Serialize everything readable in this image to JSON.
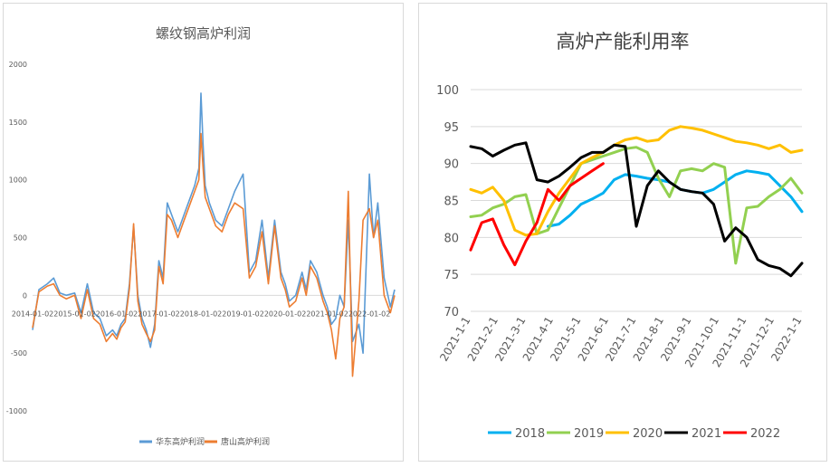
{
  "charts": {
    "left": {
      "title": "螺纹钢高炉利润"
    },
    "right": {
      "title": "高炉产能利用率"
    }
  },
  "chart_data": [
    {
      "type": "line",
      "title": "螺纹钢高炉利润",
      "xlabel": "",
      "ylabel": "",
      "ylim": [
        -1000,
        2000
      ],
      "y_ticks": [
        2000,
        1500,
        1000,
        500,
        0,
        -500,
        -1000
      ],
      "x_tick_labels": [
        "2014-01-02",
        "2015-01-02",
        "2016-01-02",
        "2017-01-02",
        "2018-01-02",
        "2019-01-02",
        "2020-01-02",
        "2021-01-02",
        "2022-01-02"
      ],
      "x_range": [
        2014.0,
        2022.6
      ],
      "legend_position": "bottom",
      "series": [
        {
          "name": "华东高炉利润",
          "color": "#5b9bd5",
          "x": [
            2014.0,
            2014.15,
            2014.35,
            2014.5,
            2014.65,
            2014.8,
            2015.0,
            2015.15,
            2015.3,
            2015.45,
            2015.6,
            2015.75,
            2015.9,
            2016.0,
            2016.1,
            2016.2,
            2016.3,
            2016.4,
            2016.5,
            2016.6,
            2016.7,
            2016.8,
            2016.9,
            2017.0,
            2017.1,
            2017.2,
            2017.3,
            2017.45,
            2017.6,
            2017.75,
            2017.85,
            2017.95,
            2018.0,
            2018.05,
            2018.1,
            2018.2,
            2018.35,
            2018.5,
            2018.65,
            2018.8,
            2019.0,
            2019.15,
            2019.3,
            2019.45,
            2019.6,
            2019.75,
            2019.9,
            2020.0,
            2020.1,
            2020.25,
            2020.4,
            2020.5,
            2020.6,
            2020.75,
            2020.9,
            2021.0,
            2021.1,
            2021.2,
            2021.3,
            2021.4,
            2021.5,
            2021.6,
            2021.75,
            2021.85,
            2022.0,
            2022.1,
            2022.2,
            2022.35,
            2022.5,
            2022.6
          ],
          "values": [
            -300,
            50,
            100,
            150,
            20,
            0,
            20,
            -150,
            100,
            -150,
            -200,
            -350,
            -300,
            -350,
            -250,
            -200,
            100,
            600,
            0,
            -200,
            -300,
            -450,
            -250,
            300,
            150,
            800,
            700,
            550,
            700,
            850,
            950,
            1100,
            1750,
            1300,
            950,
            800,
            650,
            600,
            750,
            900,
            1050,
            200,
            300,
            650,
            150,
            650,
            200,
            100,
            -50,
            0,
            200,
            50,
            300,
            200,
            0,
            -100,
            -250,
            -200,
            0,
            -100,
            650,
            -400,
            -250,
            -500,
            1050,
            500,
            800,
            150,
            -100,
            50
          ]
        },
        {
          "name": "唐山高炉利润",
          "color": "#ed7d31",
          "x": [
            2014.0,
            2014.15,
            2014.35,
            2014.5,
            2014.65,
            2014.8,
            2015.0,
            2015.15,
            2015.3,
            2015.45,
            2015.6,
            2015.75,
            2015.9,
            2016.0,
            2016.1,
            2016.2,
            2016.3,
            2016.4,
            2016.5,
            2016.6,
            2016.7,
            2016.8,
            2016.9,
            2017.0,
            2017.1,
            2017.2,
            2017.3,
            2017.45,
            2017.6,
            2017.75,
            2017.85,
            2017.95,
            2018.0,
            2018.05,
            2018.1,
            2018.2,
            2018.35,
            2018.5,
            2018.65,
            2018.8,
            2019.0,
            2019.15,
            2019.3,
            2019.45,
            2019.6,
            2019.75,
            2019.9,
            2020.0,
            2020.1,
            2020.25,
            2020.4,
            2020.5,
            2020.6,
            2020.75,
            2020.9,
            2021.0,
            2021.1,
            2021.2,
            2021.3,
            2021.4,
            2021.5,
            2021.6,
            2021.75,
            2021.85,
            2022.0,
            2022.1,
            2022.2,
            2022.35,
            2022.5,
            2022.6
          ],
          "values": [
            -280,
            30,
            80,
            100,
            0,
            -30,
            0,
            -200,
            50,
            -200,
            -250,
            -400,
            -330,
            -380,
            -280,
            -230,
            60,
            620,
            -50,
            -250,
            -330,
            -400,
            -300,
            250,
            100,
            700,
            650,
            500,
            650,
            800,
            900,
            1000,
            1400,
            1100,
            850,
            750,
            600,
            550,
            700,
            800,
            750,
            150,
            250,
            550,
            100,
            600,
            150,
            50,
            -100,
            -50,
            150,
            0,
            250,
            150,
            -50,
            -150,
            -300,
            -550,
            -200,
            -100,
            900,
            -700,
            -50,
            650,
            750,
            500,
            650,
            0,
            -150,
            0
          ]
        }
      ]
    },
    {
      "type": "line",
      "title": "高炉产能利用率",
      "xlabel": "",
      "ylabel": "",
      "ylim": [
        70,
        100
      ],
      "y_ticks": [
        100,
        95,
        90,
        85,
        80,
        75,
        70
      ],
      "categories": [
        "2021-1-1",
        "2021-2-1",
        "2021-3-1",
        "2021-4-1",
        "2021-5-1",
        "2021-6-1",
        "2021-7-1",
        "2021-8-1",
        "2021-9-1",
        "2021-10-1",
        "2021-11-1",
        "2021-12-1",
        "2022-1-1"
      ],
      "grid": true,
      "legend_position": "bottom",
      "series": [
        {
          "name": "2018",
          "color": "#00b0f0",
          "x": [
            0,
            0.4,
            0.8,
            1.2,
            1.6,
            2.0,
            2.4,
            2.8,
            3.2,
            3.6,
            4.0,
            4.4,
            4.8,
            5.2,
            5.6,
            6.0,
            6.4,
            6.8,
            7.2,
            7.6,
            8.0,
            8.4,
            8.8,
            9.2,
            9.6,
            10.0,
            10.4,
            10.8,
            11.2,
            11.6,
            12.0
          ],
          "values": [
            null,
            null,
            null,
            null,
            null,
            null,
            null,
            81.5,
            81.8,
            83.0,
            84.5,
            85.2,
            86.0,
            87.8,
            88.5,
            88.3,
            88.0,
            87.8,
            87.5,
            86.5,
            86.2,
            86.0,
            86.5,
            87.5,
            88.5,
            89.0,
            88.8,
            88.5,
            87.0,
            85.5,
            83.5
          ]
        },
        {
          "name": "2019",
          "color": "#92d050",
          "x": [
            0,
            0.4,
            0.8,
            1.2,
            1.6,
            2.0,
            2.4,
            2.8,
            3.2,
            3.6,
            4.0,
            4.4,
            4.8,
            5.2,
            5.6,
            6.0,
            6.4,
            6.8,
            7.2,
            7.6,
            8.0,
            8.4,
            8.8,
            9.2,
            9.6,
            10.0,
            10.4,
            10.8,
            11.2,
            11.6,
            12.0
          ],
          "values": [
            82.8,
            83.0,
            84.0,
            84.5,
            85.5,
            85.8,
            80.5,
            81.0,
            84.0,
            87.0,
            90.0,
            90.5,
            91.0,
            91.5,
            92.0,
            92.2,
            91.5,
            88.0,
            85.5,
            89.0,
            89.3,
            89.0,
            90.0,
            89.5,
            76.5,
            84.0,
            84.2,
            85.5,
            86.5,
            88.0,
            86.0
          ]
        },
        {
          "name": "2020",
          "color": "#ffc000",
          "x": [
            0,
            0.4,
            0.8,
            1.2,
            1.6,
            2.0,
            2.4,
            2.8,
            3.2,
            3.6,
            4.0,
            4.4,
            4.8,
            5.2,
            5.6,
            6.0,
            6.4,
            6.8,
            7.2,
            7.6,
            8.0,
            8.4,
            8.8,
            9.2,
            9.6,
            10.0,
            10.4,
            10.8,
            11.2,
            11.6,
            12.0
          ],
          "values": [
            86.5,
            86.0,
            86.8,
            85.0,
            81.0,
            80.3,
            80.5,
            83.5,
            86.0,
            88.0,
            90.0,
            90.8,
            91.5,
            92.5,
            93.2,
            93.5,
            93.0,
            93.2,
            94.5,
            95.0,
            94.8,
            94.5,
            94.0,
            93.5,
            93.0,
            92.8,
            92.5,
            92.0,
            92.5,
            91.5,
            91.8
          ]
        },
        {
          "name": "2021",
          "color": "#000000",
          "x": [
            0,
            0.4,
            0.8,
            1.2,
            1.6,
            2.0,
            2.4,
            2.8,
            3.2,
            3.6,
            4.0,
            4.4,
            4.8,
            5.2,
            5.6,
            6.0,
            6.4,
            6.8,
            7.2,
            7.6,
            8.0,
            8.4,
            8.8,
            9.2,
            9.6,
            10.0,
            10.4,
            10.8,
            11.2,
            11.6,
            12.0
          ],
          "values": [
            92.3,
            92.0,
            91.0,
            91.8,
            92.5,
            92.8,
            87.8,
            87.5,
            88.3,
            89.5,
            90.8,
            91.5,
            91.5,
            92.5,
            92.3,
            81.5,
            87.0,
            89.0,
            87.5,
            86.5,
            86.2,
            86.0,
            84.5,
            79.5,
            81.3,
            80.0,
            77.0,
            76.2,
            75.8,
            74.8,
            76.5
          ]
        },
        {
          "name": "2022",
          "color": "#ff0000",
          "x": [
            0,
            0.4,
            0.8,
            1.2,
            1.6,
            2.0,
            2.4,
            2.8,
            3.2,
            3.6,
            4.0,
            4.4,
            4.8,
            5.2,
            5.6,
            6.0,
            6.4,
            6.8,
            7.2,
            7.6,
            8.0,
            8.4,
            8.8,
            9.2,
            9.6,
            10.0,
            10.4,
            10.8,
            11.2,
            11.6,
            12.0
          ],
          "values": [
            78.3,
            82.0,
            82.5,
            79.0,
            76.3,
            79.5,
            82.0,
            86.5,
            85.0,
            87.0,
            88.0,
            89.0,
            90.0,
            null,
            null,
            null,
            null,
            null,
            null,
            null,
            null,
            null,
            null,
            null,
            null,
            null,
            null,
            null,
            null,
            null,
            null
          ]
        }
      ]
    }
  ]
}
